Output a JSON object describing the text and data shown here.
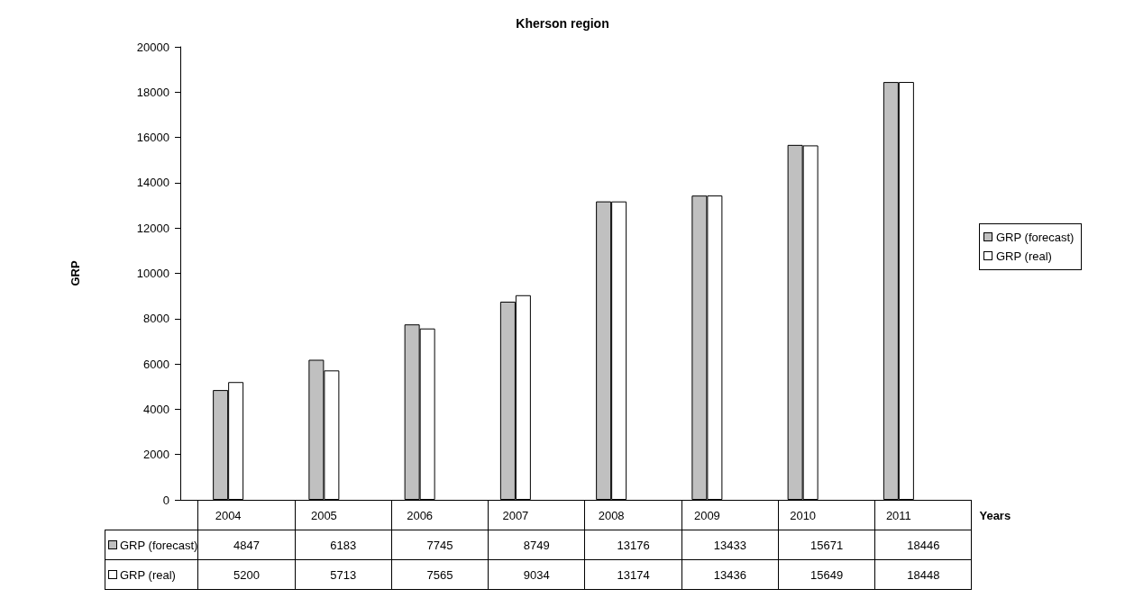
{
  "chart_data": {
    "type": "bar",
    "title": "Kherson region",
    "xlabel": "Years",
    "ylabel": "GRP",
    "categories": [
      "2004",
      "2005",
      "2006",
      "2007",
      "2008",
      "2009",
      "2010",
      "2011"
    ],
    "series": [
      {
        "name": "GRP (forecast)",
        "color": "#c0c0c0",
        "values": [
          4847,
          6183,
          7745,
          8749,
          13176,
          13433,
          15671,
          18446
        ]
      },
      {
        "name": "GRP (real)",
        "color": "#ffffff",
        "values": [
          5200,
          5713,
          7565,
          9034,
          13174,
          13436,
          15649,
          18448
        ]
      }
    ],
    "ylim": [
      0,
      20000
    ],
    "yticks": [
      0,
      2000,
      4000,
      6000,
      8000,
      10000,
      12000,
      14000,
      16000,
      18000,
      20000
    ],
    "grid": false,
    "legend": "right",
    "data_labels": true
  }
}
